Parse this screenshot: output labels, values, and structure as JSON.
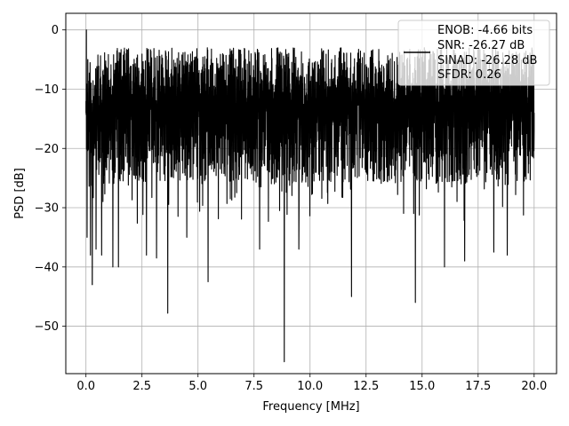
{
  "chart_data": {
    "type": "line",
    "title": "",
    "xlabel": "Frequency [MHz]",
    "ylabel": "PSD [dB]",
    "xlim": [
      -0.9,
      21.0
    ],
    "ylim": [
      -58.0,
      2.8
    ],
    "x_ticks": [
      0.0,
      2.5,
      5.0,
      7.5,
      10.0,
      12.5,
      15.0,
      17.5,
      20.0
    ],
    "x_tick_labels": [
      "0.0",
      "2.5",
      "5.0",
      "7.5",
      "10.0",
      "12.5",
      "15.0",
      "17.5",
      "20.0"
    ],
    "y_ticks": [
      0,
      -10,
      -20,
      -30,
      -40,
      -50
    ],
    "y_tick_labels": [
      "0",
      "−10",
      "−20",
      "−30",
      "−40",
      "−50"
    ],
    "grid": true,
    "legend_position": "top-right",
    "legend_lines": [
      "ENOB: -4.66 bits",
      "SNR: -26.27 dB",
      "SINAD: -26.28 dB",
      "SFDR: 0.26"
    ],
    "series": [
      {
        "color": "#000000",
        "style": "dense noisy spectrum between about -3 dB and -32 dB",
        "x_range": [
          0.0,
          20.0
        ],
        "points": [
          {
            "x": 0.0,
            "y": -12.0
          },
          {
            "x": 0.02,
            "y": 0.0
          },
          {
            "x": 0.05,
            "y": -35.0
          },
          {
            "x": 0.08,
            "y": -5.0
          },
          {
            "x": 0.12,
            "y": -20.0
          },
          {
            "x": 0.2,
            "y": -38.0
          },
          {
            "x": 0.28,
            "y": -43.0
          },
          {
            "x": 0.45,
            "y": -37.0
          },
          {
            "x": 0.7,
            "y": -38.0
          },
          {
            "x": 1.2,
            "y": -40.0
          },
          {
            "x": 1.45,
            "y": -40.0
          },
          {
            "x": 2.7,
            "y": -38.0
          },
          {
            "x": 3.15,
            "y": -38.5
          },
          {
            "x": 3.65,
            "y": -47.8
          },
          {
            "x": 4.5,
            "y": -35.0
          },
          {
            "x": 5.45,
            "y": -42.5
          },
          {
            "x": 7.75,
            "y": -37.0
          },
          {
            "x": 8.85,
            "y": -56.0
          },
          {
            "x": 9.5,
            "y": -37.0
          },
          {
            "x": 11.85,
            "y": -45.0
          },
          {
            "x": 14.7,
            "y": -46.0
          },
          {
            "x": 16.0,
            "y": -40.0
          },
          {
            "x": 16.9,
            "y": -39.0
          },
          {
            "x": 18.2,
            "y": -37.5
          },
          {
            "x": 18.8,
            "y": -38.0
          },
          {
            "x": 20.0,
            "y": -17.0
          }
        ]
      }
    ]
  }
}
